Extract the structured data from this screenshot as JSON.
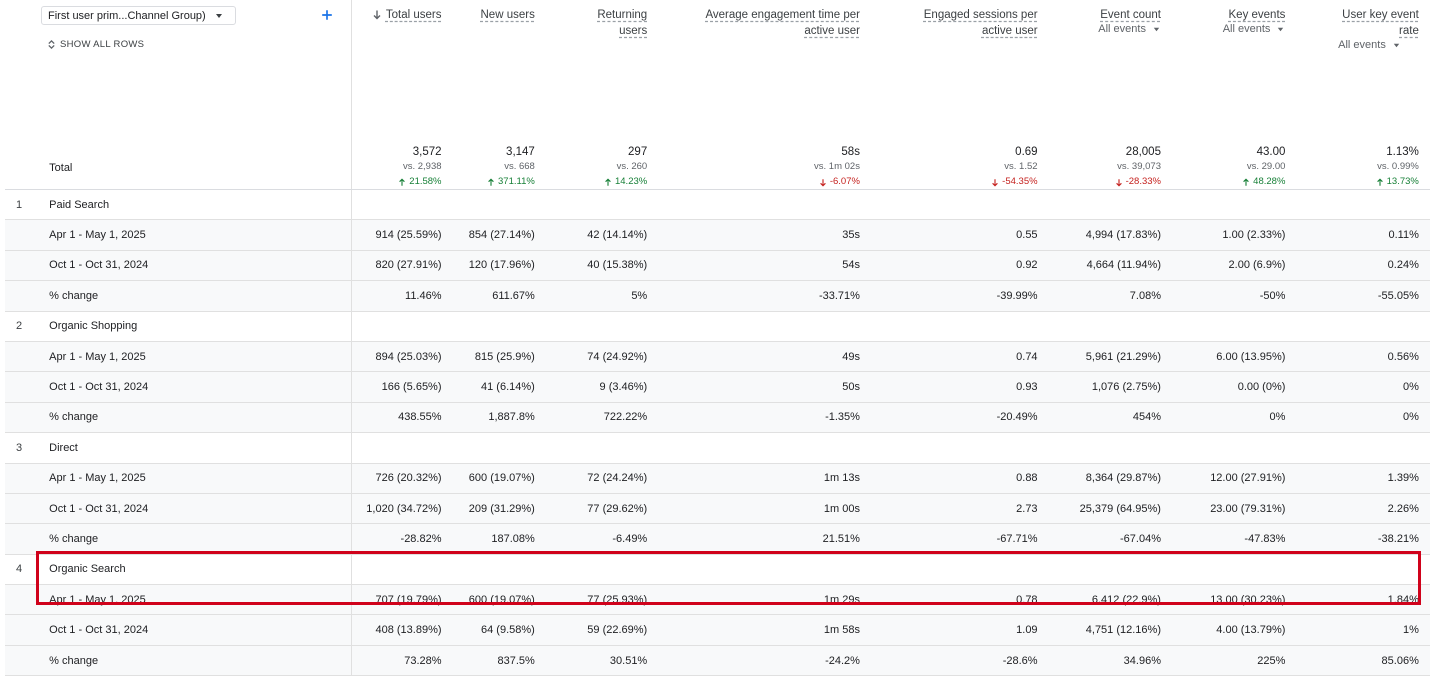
{
  "dimension_selector": "First user prim...Channel Group)",
  "show_all_rows": "SHOW ALL ROWS",
  "columns": [
    {
      "title": "Total users"
    },
    {
      "title": "New users"
    },
    {
      "title": "Returning users"
    },
    {
      "title": "Average engagement time per active user"
    },
    {
      "title": "Engaged sessions per active user"
    },
    {
      "title": "Event count",
      "filter": "All events"
    },
    {
      "title": "Key events",
      "filter": "All events"
    },
    {
      "title": "User key event rate",
      "filter": "All events"
    }
  ],
  "total": {
    "label": "Total",
    "cells": [
      {
        "value": "3,572",
        "compare": "vs. 2,938",
        "change": "21.58%"
      },
      {
        "value": "3,147",
        "compare": "vs. 668",
        "change": "371.11%"
      },
      {
        "value": "297",
        "compare": "vs. 260",
        "change": "14.23%"
      },
      {
        "value": "58s",
        "compare": "vs. 1m 02s",
        "change": "-6.07%"
      },
      {
        "value": "0.69",
        "compare": "vs. 1.52",
        "change": "-54.35%"
      },
      {
        "value": "28,005",
        "compare": "vs. 39,073",
        "change": "-28.33%"
      },
      {
        "value": "43.00",
        "compare": "vs. 29.00",
        "change": "48.28%"
      },
      {
        "value": "1.13%",
        "compare": "vs. 0.99%",
        "change": "13.73%"
      }
    ]
  },
  "groups": [
    {
      "index": "1",
      "name": "Paid Search",
      "rows": [
        {
          "label": "Apr 1 - May 1, 2025",
          "cells": [
            "914 (25.59%)",
            "854 (27.14%)",
            "42 (14.14%)",
            "35s",
            "0.55",
            "4,994 (17.83%)",
            "1.00 (2.33%)",
            "0.11%"
          ]
        },
        {
          "label": "Oct 1 - Oct 31, 2024",
          "cells": [
            "820 (27.91%)",
            "120 (17.96%)",
            "40 (15.38%)",
            "54s",
            "0.92",
            "4,664 (11.94%)",
            "2.00 (6.9%)",
            "0.24%"
          ]
        },
        {
          "label": "% change",
          "cells": [
            "11.46%",
            "611.67%",
            "5%",
            "-33.71%",
            "-39.99%",
            "7.08%",
            "-50%",
            "-55.05%"
          ]
        }
      ]
    },
    {
      "index": "2",
      "name": "Organic Shopping",
      "rows": [
        {
          "label": "Apr 1 - May 1, 2025",
          "cells": [
            "894 (25.03%)",
            "815 (25.9%)",
            "74 (24.92%)",
            "49s",
            "0.74",
            "5,961 (21.29%)",
            "6.00 (13.95%)",
            "0.56%"
          ]
        },
        {
          "label": "Oct 1 - Oct 31, 2024",
          "cells": [
            "166 (5.65%)",
            "41 (6.14%)",
            "9 (3.46%)",
            "50s",
            "0.93",
            "1,076 (2.75%)",
            "0.00 (0%)",
            "0%"
          ]
        },
        {
          "label": "% change",
          "cells": [
            "438.55%",
            "1,887.8%",
            "722.22%",
            "-1.35%",
            "-20.49%",
            "454%",
            "0%",
            "0%"
          ]
        }
      ]
    },
    {
      "index": "3",
      "name": "Direct",
      "rows": [
        {
          "label": "Apr 1 - May 1, 2025",
          "cells": [
            "726 (20.32%)",
            "600 (19.07%)",
            "72 (24.24%)",
            "1m 13s",
            "0.88",
            "8,364 (29.87%)",
            "12.00 (27.91%)",
            "1.39%"
          ]
        },
        {
          "label": "Oct 1 - Oct 31, 2024",
          "cells": [
            "1,020 (34.72%)",
            "209 (31.29%)",
            "77 (29.62%)",
            "1m 00s",
            "2.73",
            "25,379 (64.95%)",
            "23.00 (79.31%)",
            "2.26%"
          ]
        },
        {
          "label": "% change",
          "cells": [
            "-28.82%",
            "187.08%",
            "-6.49%",
            "21.51%",
            "-67.71%",
            "-67.04%",
            "-47.83%",
            "-38.21%"
          ]
        }
      ]
    },
    {
      "index": "4",
      "name": "Organic Search",
      "rows": [
        {
          "label": "Apr 1 - May 1, 2025",
          "cells": [
            "707 (19.79%)",
            "600 (19.07%)",
            "77 (25.93%)",
            "1m 29s",
            "0.78",
            "6,412 (22.9%)",
            "13.00 (30.23%)",
            "1.84%"
          ]
        },
        {
          "label": "Oct 1 - Oct 31, 2024",
          "cells": [
            "408 (13.89%)",
            "64 (9.58%)",
            "59 (22.69%)",
            "1m 58s",
            "1.09",
            "4,751 (12.16%)",
            "4.00 (13.79%)",
            "1%"
          ]
        },
        {
          "label": "% change",
          "cells": [
            "73.28%",
            "837.5%",
            "30.51%",
            "-24.2%",
            "-28.6%",
            "34.96%",
            "225%",
            "85.06%"
          ]
        }
      ]
    }
  ]
}
